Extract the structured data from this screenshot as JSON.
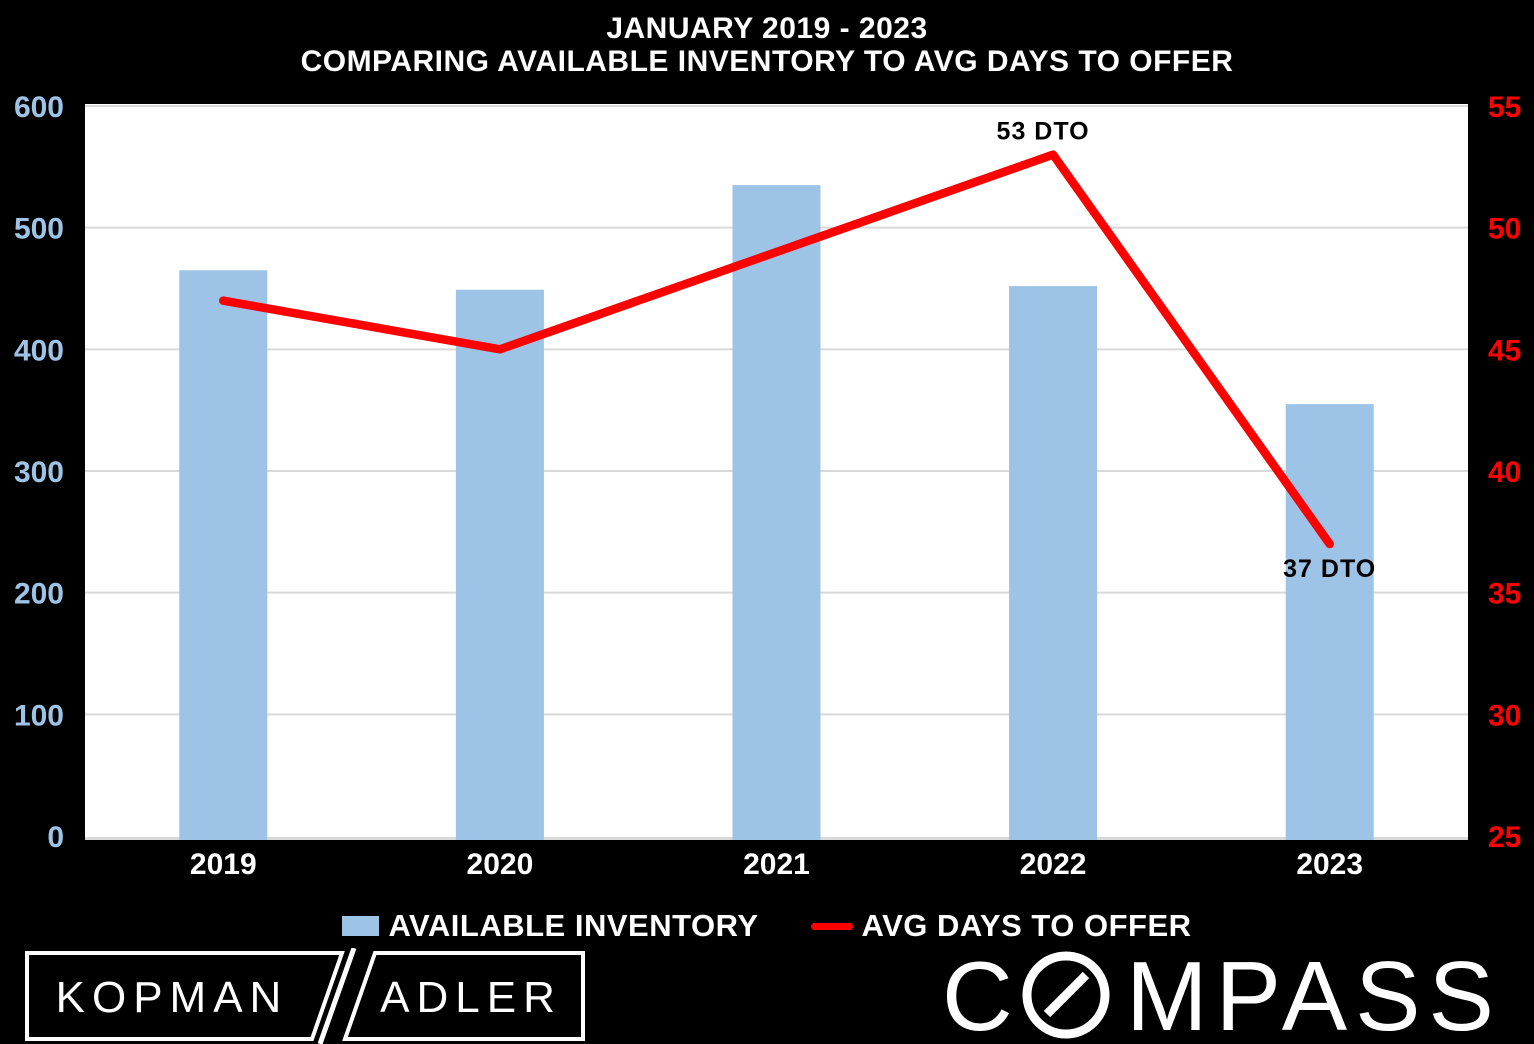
{
  "chart_data": {
    "type": "bar+line",
    "title": {
      "line1": "JANUARY 2019 - 2023",
      "line2": "COMPARING AVAILABLE INVENTORY TO AVG DAYS TO OFFER"
    },
    "categories": [
      "2019",
      "2020",
      "2021",
      "2022",
      "2023"
    ],
    "series": [
      {
        "name": "AVAILABLE INVENTORY",
        "type": "bar",
        "axis": "left",
        "color": "#9DC3E6",
        "values": [
          465,
          449,
          535,
          452,
          355
        ]
      },
      {
        "name": "AVG DAYS TO OFFER",
        "type": "line",
        "axis": "right",
        "color": "#FF0000",
        "values": [
          47,
          45,
          49,
          53,
          37
        ]
      }
    ],
    "left_axis": {
      "range": [
        0,
        600
      ],
      "ticks": [
        0,
        100,
        200,
        300,
        400,
        500,
        600
      ],
      "color": "#9DC3E6"
    },
    "right_axis": {
      "range": [
        25,
        55
      ],
      "ticks": [
        25,
        30,
        35,
        40,
        45,
        50,
        55
      ],
      "color": "#FF0000"
    },
    "annotations": [
      {
        "text": "53 DTO",
        "category_index": 3,
        "value": 53,
        "position": "above",
        "dx": -10
      },
      {
        "text": "37 DTO",
        "category_index": 4,
        "value": 37,
        "position": "below",
        "dx": 0
      }
    ],
    "grid": true,
    "plot_bg": "#FFFFFF",
    "gridline_color": "#D9D9D9",
    "canvas_bg": "#000000",
    "category_label_color": "#FFFFFF",
    "legend": [
      {
        "label": "AVAILABLE INVENTORY",
        "swatch": "bar",
        "color": "#9DC3E6"
      },
      {
        "label": "AVG DAYS TO OFFER",
        "swatch": "line",
        "color": "#FF0000"
      }
    ],
    "legend_position": "bottom"
  },
  "logos": {
    "kopman_left": "KOPMAN",
    "kopman_slash": "/",
    "kopman_right": "ADLER",
    "compass_prefix": "C",
    "compass_suffix": "MPASS"
  }
}
